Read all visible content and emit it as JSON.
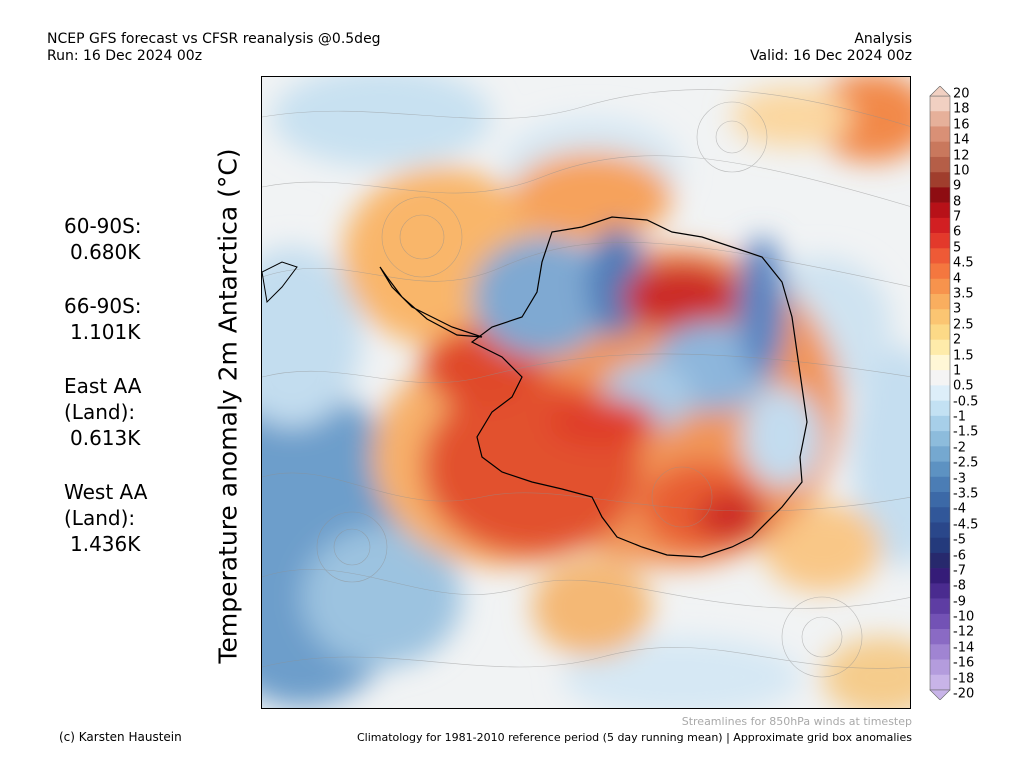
{
  "header": {
    "line1": "NCEP GFS forecast vs CFSR reanalysis @0.5deg",
    "line2": "Run: 16 Dec 2024 00z",
    "right_line1": "Analysis",
    "right_line2": "Valid: 16 Dec 2024 00z"
  },
  "stats": [
    {
      "label": "60-90S:",
      "value": "0.680K"
    },
    {
      "label": "66-90S:",
      "value": "1.101K"
    },
    {
      "label": "East AA (Land):",
      "value": "0.613K"
    },
    {
      "label": "West AA (Land):",
      "value": "1.436K"
    }
  ],
  "map_title": "Temperature anomaly 2m Antarctica (°C)",
  "colorbar": {
    "levels": [
      "20",
      "18",
      "16",
      "14",
      "12",
      "10",
      "9",
      "8",
      "7",
      "6",
      "5",
      "4.5",
      "4",
      "3.5",
      "3",
      "2.5",
      "2",
      "1.5",
      "1",
      "0.5",
      "-0.5",
      "-1",
      "-1.5",
      "-2",
      "-2.5",
      "-3",
      "-3.5",
      "-4",
      "-4.5",
      "-5",
      "-6",
      "-7",
      "-8",
      "-9",
      "-10",
      "-12",
      "-14",
      "-16",
      "-18",
      "-20"
    ],
    "colors": [
      "#f1d0c2",
      "#e6b09a",
      "#d99076",
      "#c9785d",
      "#b55e47",
      "#a03e2d",
      "#8e0d12",
      "#b71118",
      "#d21f22",
      "#e3392b",
      "#ee5a36",
      "#f4773f",
      "#f7934d",
      "#f9ae5f",
      "#fbc572",
      "#fcd987",
      "#feebaa",
      "#fff7d6",
      "#f4f4f4",
      "#ddeef9",
      "#c3e1f3",
      "#a7cfe9",
      "#8dbcdc",
      "#75a8d0",
      "#5d92c2",
      "#4b7db5",
      "#3c69a7",
      "#315799",
      "#2a478a",
      "#243a7c",
      "#27296d",
      "#351c78",
      "#4a2b8f",
      "#5e3da3",
      "#7352b5",
      "#8a6ac4",
      "#a084d2",
      "#b49cdd",
      "#c8b4e8"
    ]
  },
  "footer": {
    "note": "Streamlines for 850hPa winds at timestep",
    "left": "(c) Karsten Haustein",
    "right": "Climatology for 1981-2010 reference period (5 day running mean) | Approximate grid box anomalies"
  }
}
